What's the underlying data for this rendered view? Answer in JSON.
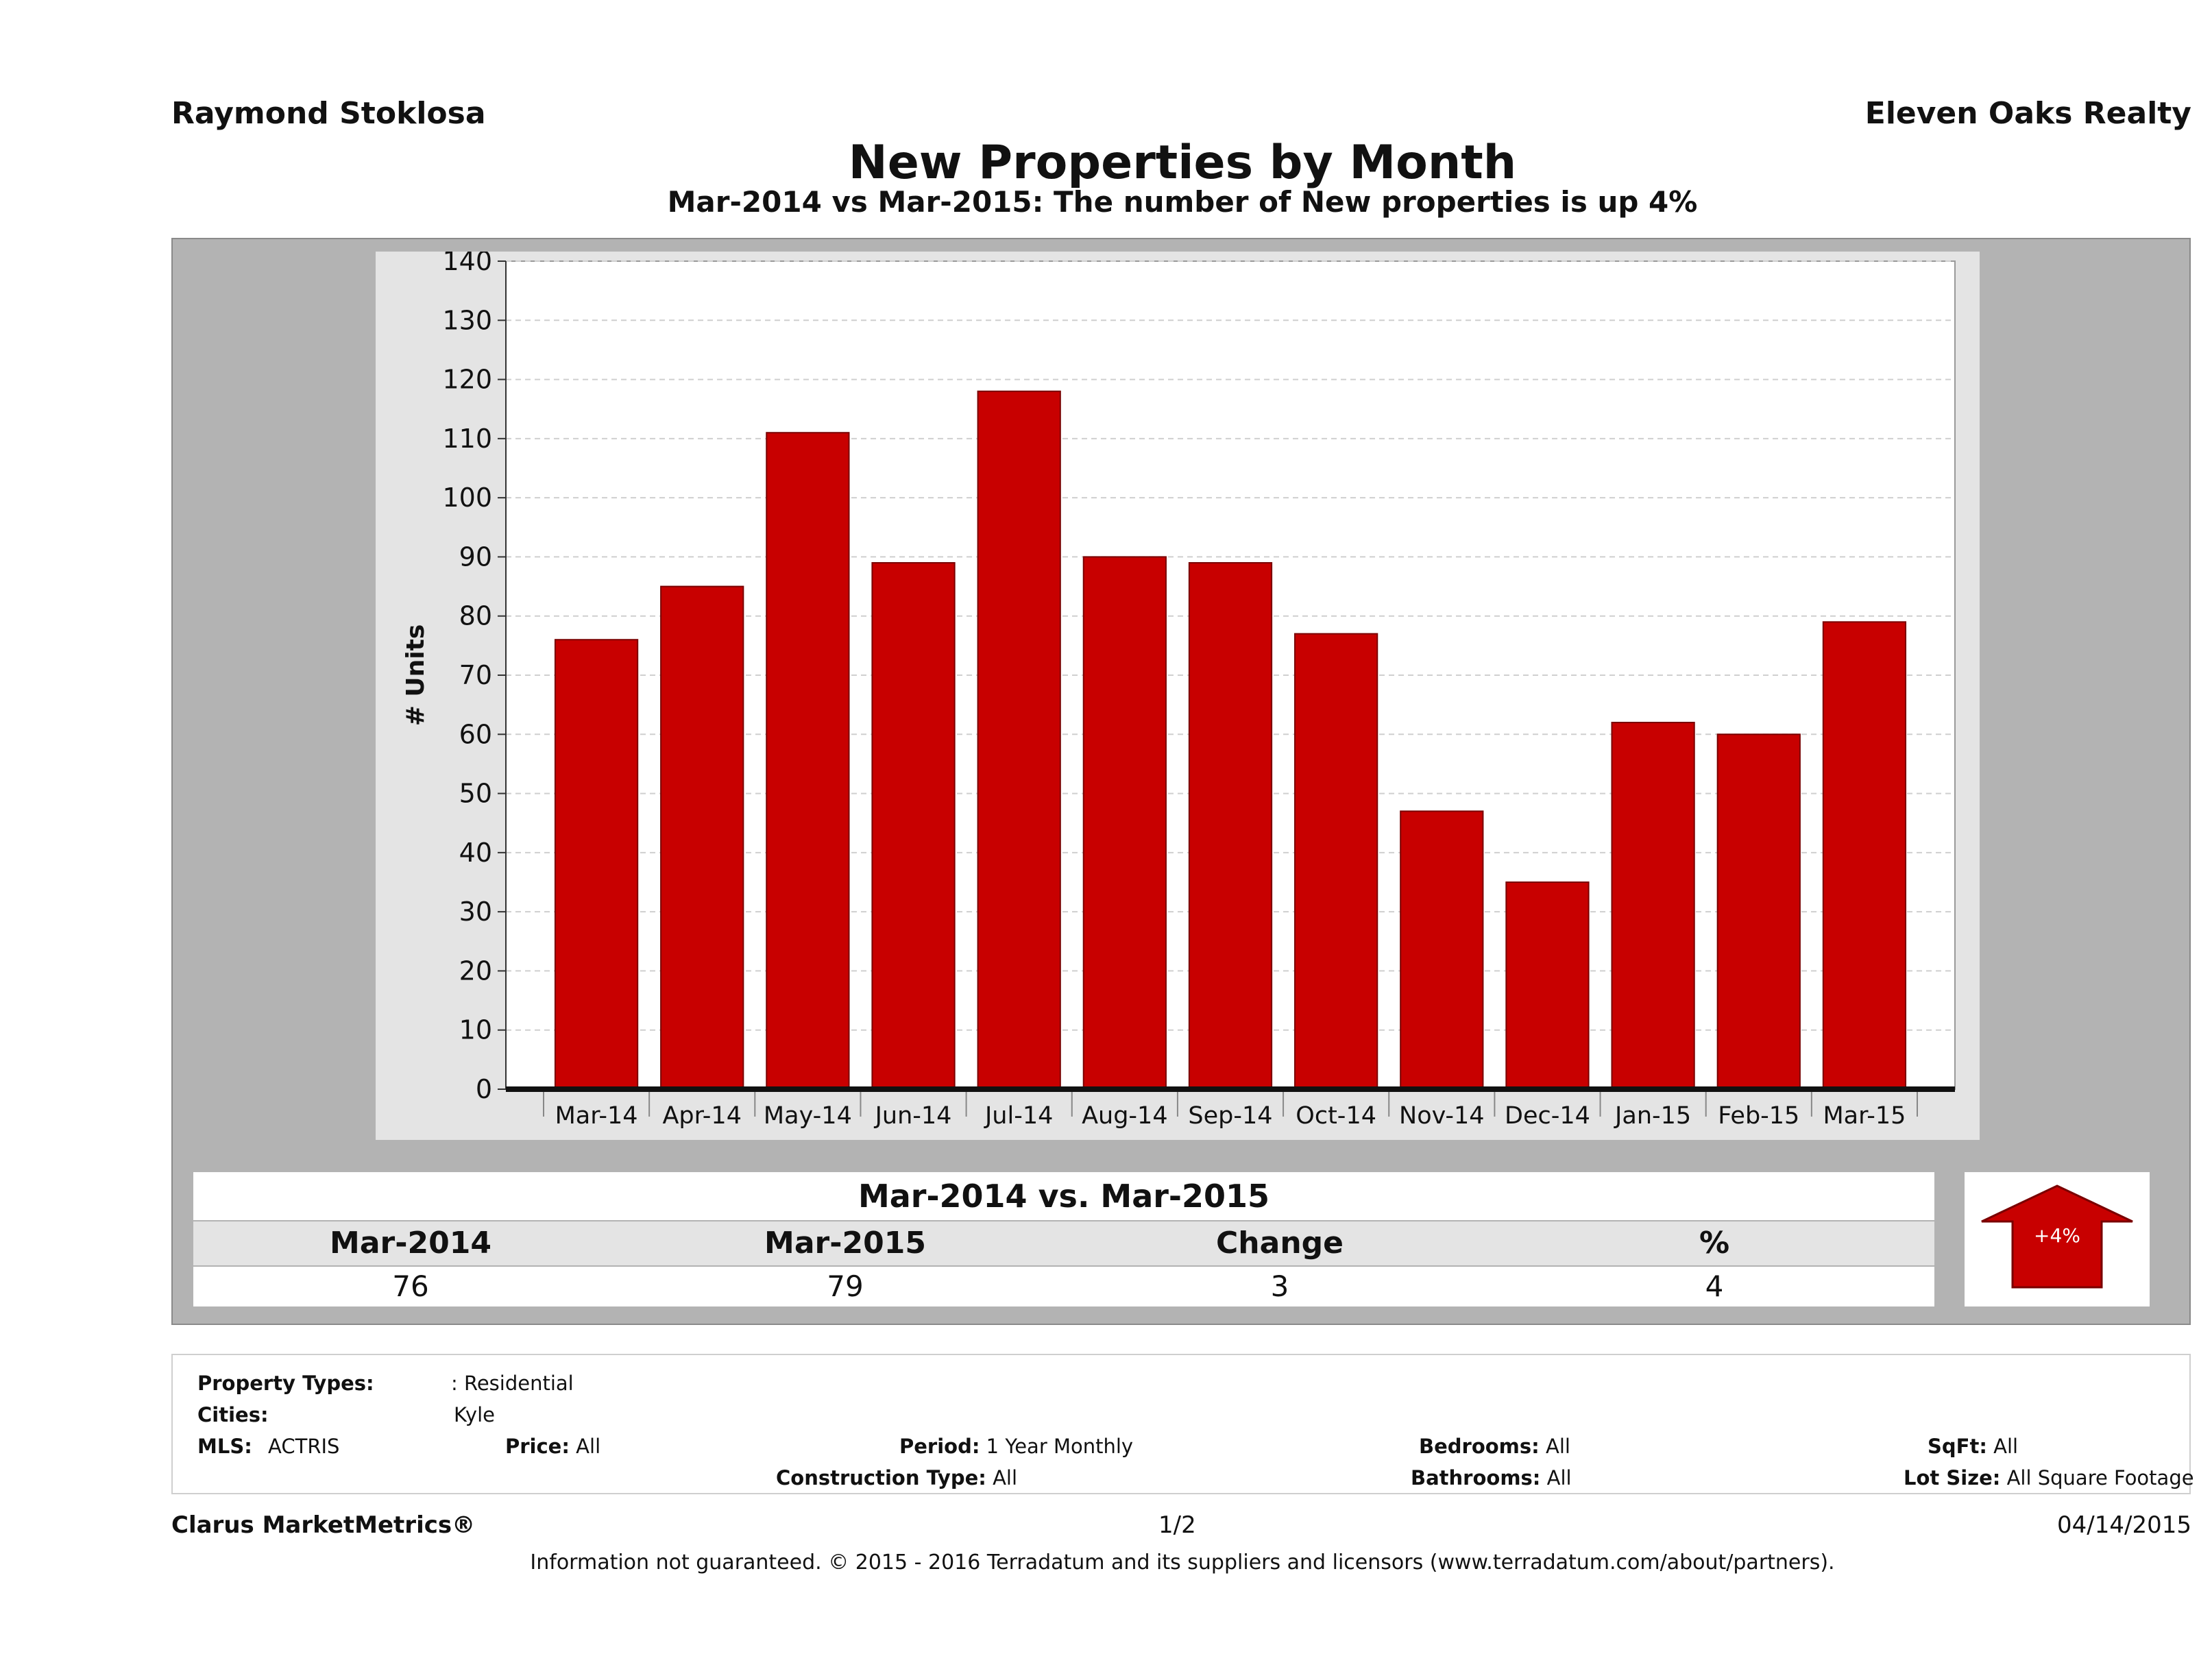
{
  "header": {
    "agent_name": "Raymond Stoklosa",
    "brokerage": "Eleven Oaks Realty",
    "title": "New Properties by Month",
    "subtitle": "Mar-2014 vs Mar-2015: The number of New  properties is up 4%"
  },
  "colors": {
    "bar": "#c80000",
    "panel": "#b3b3b3",
    "plot_background": "#ffffff",
    "chart_frame": "#e4e4e4"
  },
  "chart_data": {
    "type": "bar",
    "title": "",
    "xlabel": "",
    "ylabel": "# Units",
    "categories": [
      "Mar-14",
      "Apr-14",
      "May-14",
      "Jun-14",
      "Jul-14",
      "Aug-14",
      "Sep-14",
      "Oct-14",
      "Nov-14",
      "Dec-14",
      "Jan-15",
      "Feb-15",
      "Mar-15"
    ],
    "values": [
      76,
      85,
      111,
      89,
      118,
      90,
      89,
      77,
      47,
      35,
      62,
      60,
      79
    ],
    "ylim": [
      0,
      140
    ],
    "yticks": [
      0,
      10,
      20,
      30,
      40,
      50,
      60,
      70,
      80,
      90,
      100,
      110,
      120,
      130,
      140
    ],
    "grid": true,
    "legend": "none"
  },
  "summary": {
    "title": "Mar-2014 vs. Mar-2015",
    "headers": [
      "Mar-2014",
      "Mar-2015",
      "Change",
      "%"
    ],
    "values": [
      "76",
      "79",
      "3",
      "4"
    ],
    "badge": "+4%",
    "badge_icon": "up-arrow-icon"
  },
  "criteria": {
    "property_types_label": "Property Types:",
    "property_types_value": ": Residential",
    "cities_label": "Cities:",
    "cities_value": "Kyle",
    "mls_label": "MLS:",
    "mls_value": "ACTRIS",
    "price_label": "Price:",
    "price_value": "All",
    "period_label": "Period:",
    "period_value": "1 Year Monthly",
    "construction_label": "Construction Type:",
    "construction_value": "All",
    "bedrooms_label": "Bedrooms:",
    "bedrooms_value": "All",
    "bathrooms_label": "Bathrooms:",
    "bathrooms_value": "All",
    "sqft_label": "SqFt:",
    "sqft_value": "All",
    "lot_label": "Lot Size:",
    "lot_value": "All Square Footage"
  },
  "footer": {
    "product": "Clarus MarketMetrics®",
    "page": "1/2",
    "date": "04/14/2015",
    "disclaimer": "Information not guaranteed. © 2015 - 2016 Terradatum and its suppliers and licensors (www.terradatum.com/about/partners)."
  }
}
